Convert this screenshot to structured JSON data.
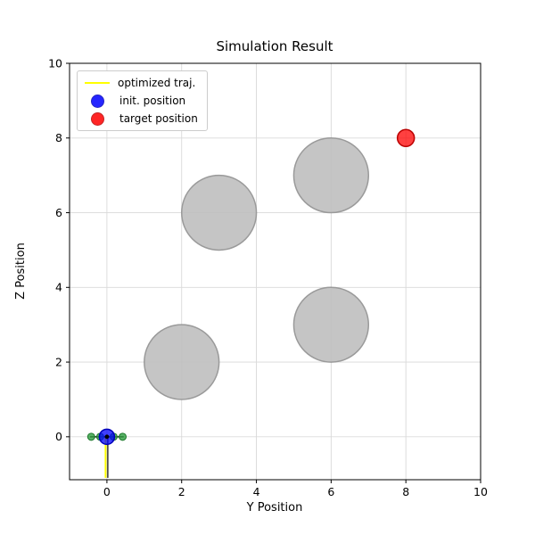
{
  "chart_data": {
    "type": "scatter",
    "title": "Simulation Result",
    "xlabel": "Y Position",
    "ylabel": "Z Position",
    "xlim": [
      -1.0,
      10.0
    ],
    "ylim": [
      -1.15,
      10.0
    ],
    "xticks": [
      0,
      2,
      4,
      6,
      8,
      10
    ],
    "yticks": [
      0,
      2,
      4,
      6,
      8,
      10
    ],
    "grid": true,
    "legend": {
      "position": "upper left",
      "entries": [
        {
          "label": "optimized traj.",
          "marker": "line",
          "color": "#ffff00"
        },
        {
          "label": "init. position",
          "marker": "circle",
          "color": "#0000ff",
          "edge": "#0000bb"
        },
        {
          "label": "target position",
          "marker": "circle",
          "color": "#ff0000",
          "edge": "#bb0000"
        }
      ]
    },
    "obstacles": [
      {
        "y": 3,
        "z": 6,
        "r": 1
      },
      {
        "y": 6,
        "z": 7,
        "r": 1
      },
      {
        "y": 6,
        "z": 3,
        "r": 1
      },
      {
        "y": 2,
        "z": 2,
        "r": 1
      }
    ],
    "init_position": {
      "y": 0,
      "z": 0
    },
    "target_position": {
      "y": 8,
      "z": 8
    },
    "trajectory": [
      [
        0,
        0
      ],
      [
        0,
        -1.1
      ]
    ],
    "drone": {
      "center": [
        0,
        0
      ],
      "arm_halfspan": 0.45,
      "rotor_offsets": [
        -0.42,
        -0.18,
        0.18,
        0.42
      ],
      "rotor_color": "#2e9e3e"
    },
    "colors": {
      "obstacle_fill": "#bfbfbf",
      "obstacle_edge": "#9a9a9a",
      "grid": "#d9d9d9",
      "frame": "#000000",
      "trajectory": "#ffff00",
      "init_fill": "#0000ff",
      "init_edge": "#0000bb",
      "target_fill": "#ff0000",
      "target_edge": "#bb0000"
    }
  }
}
